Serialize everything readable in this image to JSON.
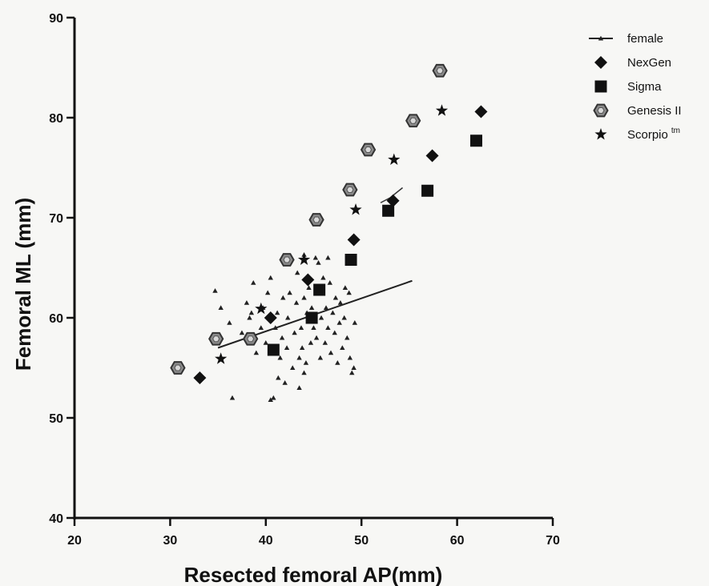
{
  "chart_data": {
    "type": "scatter",
    "xlabel": "Resected femoral AP(mm)",
    "ylabel": "Femoral ML (mm)",
    "xlim": [
      20,
      70
    ],
    "ylim": [
      40,
      90
    ],
    "xticks": [
      "20",
      "30",
      "40",
      "50",
      "60",
      "70"
    ],
    "yticks": [
      "40",
      "50",
      "60",
      "70",
      "80",
      "90"
    ],
    "grid": false,
    "legend_position": "top-right",
    "series": [
      {
        "name": "female",
        "marker": "triangle",
        "color": "#222222",
        "points": [
          [
            34.7,
            62.7
          ],
          [
            35.3,
            61.0
          ],
          [
            36.2,
            59.5
          ],
          [
            37.5,
            58.5
          ],
          [
            38.0,
            61.5
          ],
          [
            38.3,
            60.0
          ],
          [
            38.7,
            63.5
          ],
          [
            39.0,
            56.5
          ],
          [
            39.5,
            59.0
          ],
          [
            39.7,
            61.0
          ],
          [
            40.0,
            57.5
          ],
          [
            40.2,
            62.5
          ],
          [
            40.5,
            64.0
          ],
          [
            40.8,
            52.0
          ],
          [
            41.0,
            59.0
          ],
          [
            41.2,
            60.5
          ],
          [
            41.3,
            54.0
          ],
          [
            41.5,
            56.0
          ],
          [
            41.7,
            58.0
          ],
          [
            41.8,
            62.0
          ],
          [
            42.0,
            53.5
          ],
          [
            42.2,
            57.0
          ],
          [
            42.3,
            60.0
          ],
          [
            42.5,
            62.5
          ],
          [
            42.8,
            55.0
          ],
          [
            43.0,
            58.5
          ],
          [
            43.2,
            61.5
          ],
          [
            43.3,
            64.5
          ],
          [
            43.5,
            56.0
          ],
          [
            43.7,
            59.0
          ],
          [
            43.8,
            57.0
          ],
          [
            44.0,
            62.0
          ],
          [
            44.2,
            55.5
          ],
          [
            44.3,
            60.5
          ],
          [
            44.5,
            63.0
          ],
          [
            44.7,
            57.5
          ],
          [
            44.8,
            61.0
          ],
          [
            45.0,
            59.0
          ],
          [
            45.2,
            66.0
          ],
          [
            45.3,
            58.0
          ],
          [
            45.5,
            62.5
          ],
          [
            45.7,
            56.0
          ],
          [
            45.8,
            60.0
          ],
          [
            46.0,
            64.0
          ],
          [
            46.2,
            57.5
          ],
          [
            46.3,
            61.0
          ],
          [
            46.5,
            59.0
          ],
          [
            46.7,
            63.5
          ],
          [
            46.8,
            56.5
          ],
          [
            47.0,
            60.5
          ],
          [
            47.2,
            58.5
          ],
          [
            47.3,
            62.0
          ],
          [
            47.5,
            55.5
          ],
          [
            47.7,
            59.5
          ],
          [
            47.8,
            61.5
          ],
          [
            48.0,
            57.0
          ],
          [
            48.2,
            60.0
          ],
          [
            48.3,
            63.0
          ],
          [
            48.5,
            58.0
          ],
          [
            48.7,
            62.5
          ],
          [
            48.8,
            56.0
          ],
          [
            49.0,
            54.5
          ],
          [
            49.2,
            55.0
          ],
          [
            49.3,
            59.5
          ],
          [
            43.5,
            53.0
          ],
          [
            44.0,
            54.5
          ],
          [
            36.5,
            52.0
          ],
          [
            40.5,
            51.8
          ],
          [
            45.5,
            65.5
          ],
          [
            44.0,
            66.3
          ],
          [
            46.5,
            66.0
          ],
          [
            38.5,
            60.5
          ]
        ],
        "trendline": [
          [
            35.0,
            57.0
          ],
          [
            55.3,
            63.7
          ]
        ],
        "trend_extra": [
          [
            52.0,
            71.5
          ],
          [
            53.0,
            72.0
          ],
          [
            54.3,
            73.0
          ]
        ]
      },
      {
        "name": "NexGen",
        "marker": "diamond",
        "color": "#111111",
        "points": [
          [
            33.1,
            54.0
          ],
          [
            40.5,
            60.0
          ],
          [
            44.4,
            63.8
          ],
          [
            49.2,
            67.8
          ],
          [
            53.3,
            71.7
          ],
          [
            57.4,
            76.2
          ],
          [
            62.5,
            80.6
          ]
        ]
      },
      {
        "name": "Sigma",
        "marker": "square",
        "color": "#111111",
        "points": [
          [
            40.8,
            56.8
          ],
          [
            44.8,
            60.0
          ],
          [
            45.6,
            62.8
          ],
          [
            48.9,
            65.8
          ],
          [
            52.8,
            70.7
          ],
          [
            56.9,
            72.7
          ],
          [
            62.0,
            77.7
          ]
        ]
      },
      {
        "name": "Genesis II",
        "marker": "hexagon",
        "color": "#333333",
        "points": [
          [
            30.8,
            55.0
          ],
          [
            34.8,
            57.9
          ],
          [
            38.4,
            57.9
          ],
          [
            42.2,
            65.8
          ],
          [
            45.3,
            69.8
          ],
          [
            48.8,
            72.8
          ],
          [
            50.7,
            76.8
          ],
          [
            55.4,
            79.7
          ],
          [
            58.2,
            84.7
          ]
        ]
      },
      {
        "name": "Scorpio",
        "name_superscript": "tm",
        "marker": "star",
        "color": "#111111",
        "points": [
          [
            35.3,
            55.9
          ],
          [
            39.5,
            60.9
          ],
          [
            44.0,
            65.8
          ],
          [
            49.4,
            70.8
          ],
          [
            53.4,
            75.8
          ],
          [
            58.4,
            80.7
          ]
        ]
      }
    ]
  }
}
